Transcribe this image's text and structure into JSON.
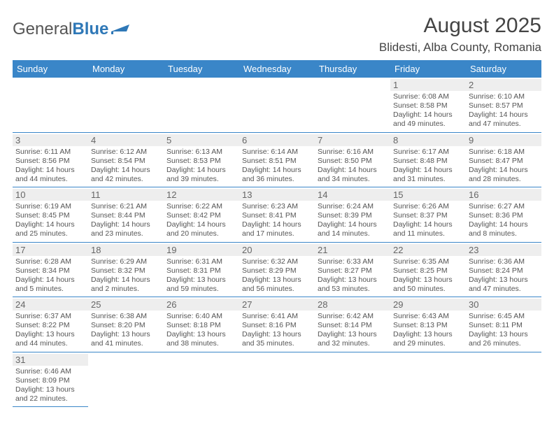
{
  "logo": {
    "text1": "General",
    "text2": "Blue",
    "flag_color": "#2f78b7"
  },
  "title": "August 2025",
  "location": "Blidesti, Alba County, Romania",
  "colors": {
    "header_bg": "#3a86c8",
    "header_fg": "#ffffff",
    "daynum_bg": "#eeeeee",
    "text": "#555555",
    "border": "#3a86c8"
  },
  "day_headers": [
    "Sunday",
    "Monday",
    "Tuesday",
    "Wednesday",
    "Thursday",
    "Friday",
    "Saturday"
  ],
  "weeks": [
    [
      null,
      null,
      null,
      null,
      null,
      {
        "n": "1",
        "sr": "Sunrise: 6:08 AM",
        "ss": "Sunset: 8:58 PM",
        "d1": "Daylight: 14 hours",
        "d2": "and 49 minutes."
      },
      {
        "n": "2",
        "sr": "Sunrise: 6:10 AM",
        "ss": "Sunset: 8:57 PM",
        "d1": "Daylight: 14 hours",
        "d2": "and 47 minutes."
      }
    ],
    [
      {
        "n": "3",
        "sr": "Sunrise: 6:11 AM",
        "ss": "Sunset: 8:56 PM",
        "d1": "Daylight: 14 hours",
        "d2": "and 44 minutes."
      },
      {
        "n": "4",
        "sr": "Sunrise: 6:12 AM",
        "ss": "Sunset: 8:54 PM",
        "d1": "Daylight: 14 hours",
        "d2": "and 42 minutes."
      },
      {
        "n": "5",
        "sr": "Sunrise: 6:13 AM",
        "ss": "Sunset: 8:53 PM",
        "d1": "Daylight: 14 hours",
        "d2": "and 39 minutes."
      },
      {
        "n": "6",
        "sr": "Sunrise: 6:14 AM",
        "ss": "Sunset: 8:51 PM",
        "d1": "Daylight: 14 hours",
        "d2": "and 36 minutes."
      },
      {
        "n": "7",
        "sr": "Sunrise: 6:16 AM",
        "ss": "Sunset: 8:50 PM",
        "d1": "Daylight: 14 hours",
        "d2": "and 34 minutes."
      },
      {
        "n": "8",
        "sr": "Sunrise: 6:17 AM",
        "ss": "Sunset: 8:48 PM",
        "d1": "Daylight: 14 hours",
        "d2": "and 31 minutes."
      },
      {
        "n": "9",
        "sr": "Sunrise: 6:18 AM",
        "ss": "Sunset: 8:47 PM",
        "d1": "Daylight: 14 hours",
        "d2": "and 28 minutes."
      }
    ],
    [
      {
        "n": "10",
        "sr": "Sunrise: 6:19 AM",
        "ss": "Sunset: 8:45 PM",
        "d1": "Daylight: 14 hours",
        "d2": "and 25 minutes."
      },
      {
        "n": "11",
        "sr": "Sunrise: 6:21 AM",
        "ss": "Sunset: 8:44 PM",
        "d1": "Daylight: 14 hours",
        "d2": "and 23 minutes."
      },
      {
        "n": "12",
        "sr": "Sunrise: 6:22 AM",
        "ss": "Sunset: 8:42 PM",
        "d1": "Daylight: 14 hours",
        "d2": "and 20 minutes."
      },
      {
        "n": "13",
        "sr": "Sunrise: 6:23 AM",
        "ss": "Sunset: 8:41 PM",
        "d1": "Daylight: 14 hours",
        "d2": "and 17 minutes."
      },
      {
        "n": "14",
        "sr": "Sunrise: 6:24 AM",
        "ss": "Sunset: 8:39 PM",
        "d1": "Daylight: 14 hours",
        "d2": "and 14 minutes."
      },
      {
        "n": "15",
        "sr": "Sunrise: 6:26 AM",
        "ss": "Sunset: 8:37 PM",
        "d1": "Daylight: 14 hours",
        "d2": "and 11 minutes."
      },
      {
        "n": "16",
        "sr": "Sunrise: 6:27 AM",
        "ss": "Sunset: 8:36 PM",
        "d1": "Daylight: 14 hours",
        "d2": "and 8 minutes."
      }
    ],
    [
      {
        "n": "17",
        "sr": "Sunrise: 6:28 AM",
        "ss": "Sunset: 8:34 PM",
        "d1": "Daylight: 14 hours",
        "d2": "and 5 minutes."
      },
      {
        "n": "18",
        "sr": "Sunrise: 6:29 AM",
        "ss": "Sunset: 8:32 PM",
        "d1": "Daylight: 14 hours",
        "d2": "and 2 minutes."
      },
      {
        "n": "19",
        "sr": "Sunrise: 6:31 AM",
        "ss": "Sunset: 8:31 PM",
        "d1": "Daylight: 13 hours",
        "d2": "and 59 minutes."
      },
      {
        "n": "20",
        "sr": "Sunrise: 6:32 AM",
        "ss": "Sunset: 8:29 PM",
        "d1": "Daylight: 13 hours",
        "d2": "and 56 minutes."
      },
      {
        "n": "21",
        "sr": "Sunrise: 6:33 AM",
        "ss": "Sunset: 8:27 PM",
        "d1": "Daylight: 13 hours",
        "d2": "and 53 minutes."
      },
      {
        "n": "22",
        "sr": "Sunrise: 6:35 AM",
        "ss": "Sunset: 8:25 PM",
        "d1": "Daylight: 13 hours",
        "d2": "and 50 minutes."
      },
      {
        "n": "23",
        "sr": "Sunrise: 6:36 AM",
        "ss": "Sunset: 8:24 PM",
        "d1": "Daylight: 13 hours",
        "d2": "and 47 minutes."
      }
    ],
    [
      {
        "n": "24",
        "sr": "Sunrise: 6:37 AM",
        "ss": "Sunset: 8:22 PM",
        "d1": "Daylight: 13 hours",
        "d2": "and 44 minutes."
      },
      {
        "n": "25",
        "sr": "Sunrise: 6:38 AM",
        "ss": "Sunset: 8:20 PM",
        "d1": "Daylight: 13 hours",
        "d2": "and 41 minutes."
      },
      {
        "n": "26",
        "sr": "Sunrise: 6:40 AM",
        "ss": "Sunset: 8:18 PM",
        "d1": "Daylight: 13 hours",
        "d2": "and 38 minutes."
      },
      {
        "n": "27",
        "sr": "Sunrise: 6:41 AM",
        "ss": "Sunset: 8:16 PM",
        "d1": "Daylight: 13 hours",
        "d2": "and 35 minutes."
      },
      {
        "n": "28",
        "sr": "Sunrise: 6:42 AM",
        "ss": "Sunset: 8:14 PM",
        "d1": "Daylight: 13 hours",
        "d2": "and 32 minutes."
      },
      {
        "n": "29",
        "sr": "Sunrise: 6:43 AM",
        "ss": "Sunset: 8:13 PM",
        "d1": "Daylight: 13 hours",
        "d2": "and 29 minutes."
      },
      {
        "n": "30",
        "sr": "Sunrise: 6:45 AM",
        "ss": "Sunset: 8:11 PM",
        "d1": "Daylight: 13 hours",
        "d2": "and 26 minutes."
      }
    ],
    [
      {
        "n": "31",
        "sr": "Sunrise: 6:46 AM",
        "ss": "Sunset: 8:09 PM",
        "d1": "Daylight: 13 hours",
        "d2": "and 22 minutes."
      },
      null,
      null,
      null,
      null,
      null,
      null
    ]
  ]
}
